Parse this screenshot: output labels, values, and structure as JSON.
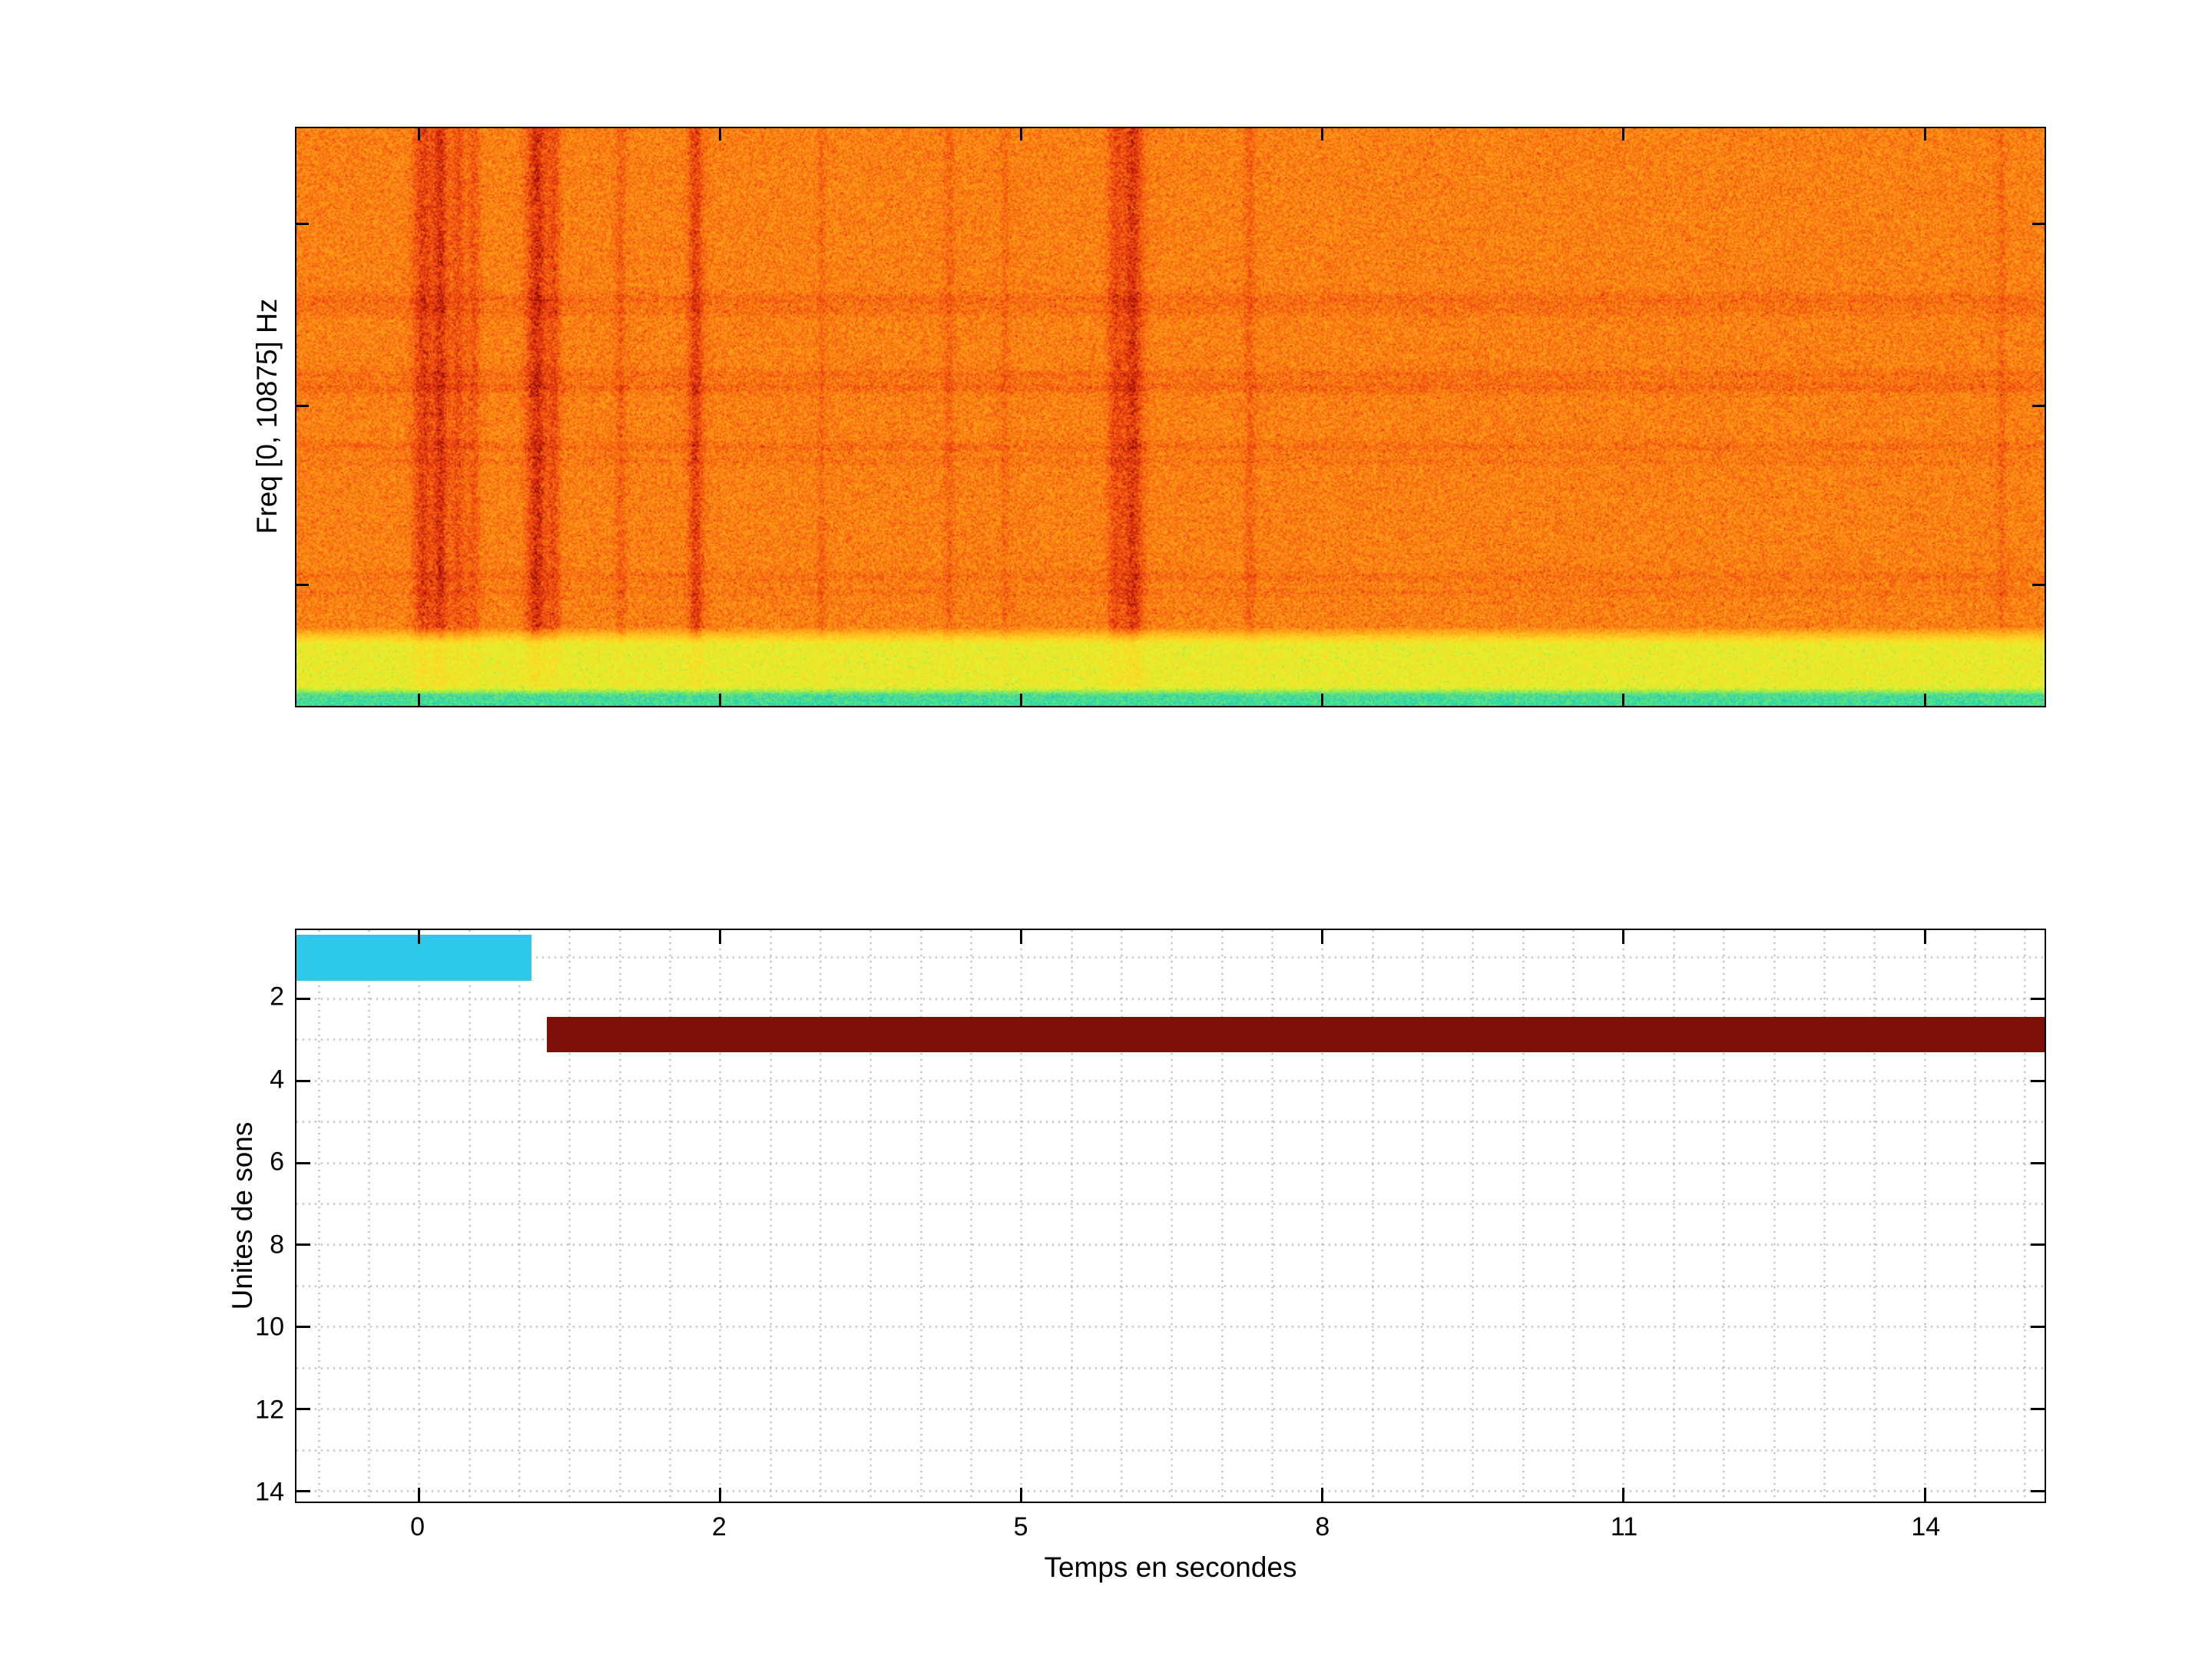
{
  "figure": {
    "background_color": "#ffffff",
    "top_plot": {
      "ylabel": "Freq [0, 10875] Hz"
    },
    "bottom_plot": {
      "ylabel": "Unites de sons",
      "xlabel": "Temps en secondes",
      "x_ticks": [
        "0",
        "2",
        "5",
        "8",
        "11",
        "14"
      ],
      "y_ticks": [
        "2",
        "4",
        "6",
        "8",
        "10",
        "12",
        "14"
      ]
    }
  },
  "chart_data": [
    {
      "type": "heatmap",
      "subplot": "top",
      "title": "",
      "ylabel": "Freq [0, 10875] Hz",
      "freq_range_hz": [
        0,
        10875
      ],
      "colormap": "jet",
      "description": "Spectrogram: dense orange noise field with dark-red vertical transient streaks concentrated near the beginning and around mid-time, faint horizontal harmonic red bands, a yellow low-frequency band along the bottom and a thin cyan strip at 0 Hz.",
      "vertical_streaks": [
        [
          0.072,
          0.004,
          0.2
        ],
        [
          0.082,
          0.003,
          0.24
        ],
        [
          0.092,
          0.003,
          0.15
        ],
        [
          0.101,
          0.0025,
          0.12
        ],
        [
          0.137,
          0.004,
          0.26
        ],
        [
          0.147,
          0.0025,
          0.15
        ],
        [
          0.185,
          0.002,
          0.1
        ],
        [
          0.228,
          0.003,
          0.2
        ],
        [
          0.3,
          0.0015,
          0.07
        ],
        [
          0.373,
          0.002,
          0.08
        ],
        [
          0.405,
          0.0015,
          0.07
        ],
        [
          0.468,
          0.003,
          0.16
        ],
        [
          0.478,
          0.004,
          0.24
        ],
        [
          0.545,
          0.002,
          0.09
        ],
        [
          0.975,
          0.0015,
          0.08
        ]
      ],
      "horizontal_bands": [
        [
          0.295,
          0.008,
          0.07
        ],
        [
          0.315,
          0.006,
          0.05
        ],
        [
          0.425,
          0.006,
          0.06
        ],
        [
          0.447,
          0.007,
          0.08
        ],
        [
          0.55,
          0.006,
          0.06
        ],
        [
          0.575,
          0.005,
          0.04
        ],
        [
          0.775,
          0.007,
          0.05
        ],
        [
          0.802,
          0.005,
          0.04
        ]
      ],
      "yellow_band_start_frac": 0.862,
      "cyan_strip_start_frac": 0.965
    },
    {
      "type": "bar",
      "subplot": "bottom",
      "orientation": "horizontal",
      "xlabel": "Temps en secondes",
      "ylabel": "Unites de sons",
      "x_tick_values": [
        0,
        2,
        5,
        8,
        11,
        14
      ],
      "y_tick_values": [
        2,
        4,
        6,
        8,
        10,
        12,
        14
      ],
      "ylim_top": 0.34,
      "ylim_bottom": 14.26,
      "grid": "dotted",
      "segments": [
        {
          "sound_unit": 1,
          "t_start": -0.85,
          "t_end": 0.75,
          "y_top": 0.45,
          "y_bottom": 1.57,
          "color": "#2ec9ea"
        },
        {
          "sound_unit": 3,
          "t_start": 0.85,
          "t_end": 15.6,
          "y_top": 2.45,
          "y_bottom": 3.32,
          "color": "#7d0f08"
        }
      ]
    }
  ]
}
